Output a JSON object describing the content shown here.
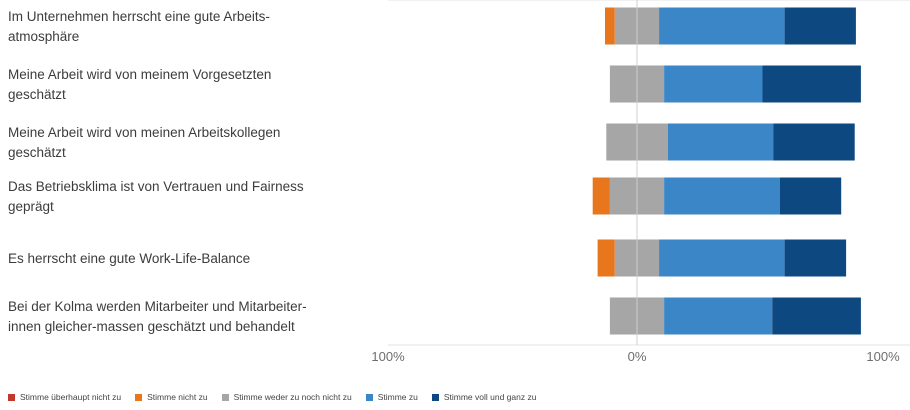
{
  "chart_data": {
    "type": "bar",
    "orientation": "horizontal",
    "stacked": "diverging",
    "categories": [
      [
        "Im Unternehmen herrscht eine gute Arbeits-",
        "atmosphäre"
      ],
      [
        "Meine Arbeit wird von meinem Vorgesetzten",
        "geschätzt"
      ],
      [
        "Meine Arbeit wird von meinen Arbeitskollegen",
        "geschätzt"
      ],
      [
        "Das Betriebsklima ist von Vertrauen und Fairness",
        "geprägt"
      ],
      [
        "Es herrscht eine gute Work-Life-Balance"
      ],
      [
        "Bei der Kolma werden Mitarbeiter und Mitarbeiter-",
        "innen gleicher-massen geschätzt und behandelt"
      ]
    ],
    "series": [
      {
        "name": "Stimme überhaupt nicht zu",
        "color": "#c0392b",
        "values": [
          0,
          0,
          0,
          0,
          0,
          0
        ]
      },
      {
        "name": "Stimme nicht zu",
        "color": "#e8761c",
        "values": [
          4,
          0,
          0,
          7,
          7,
          0
        ]
      },
      {
        "name": "Stimme weder zu noch nicht zu",
        "color": "#a6a6a6",
        "values": [
          18,
          22,
          25,
          22,
          18,
          22
        ]
      },
      {
        "name": "Stimme zu",
        "color": "#3b86c6",
        "values": [
          51,
          40,
          43,
          47,
          51,
          44
        ]
      },
      {
        "name": "Stimme voll und ganz zu",
        "color": "#0d4880",
        "values": [
          29,
          40,
          33,
          25,
          25,
          36
        ]
      }
    ],
    "xlim": [
      -100,
      100
    ],
    "xticks": [
      "100%",
      "0%",
      "100%"
    ],
    "legend_position": "bottom"
  }
}
